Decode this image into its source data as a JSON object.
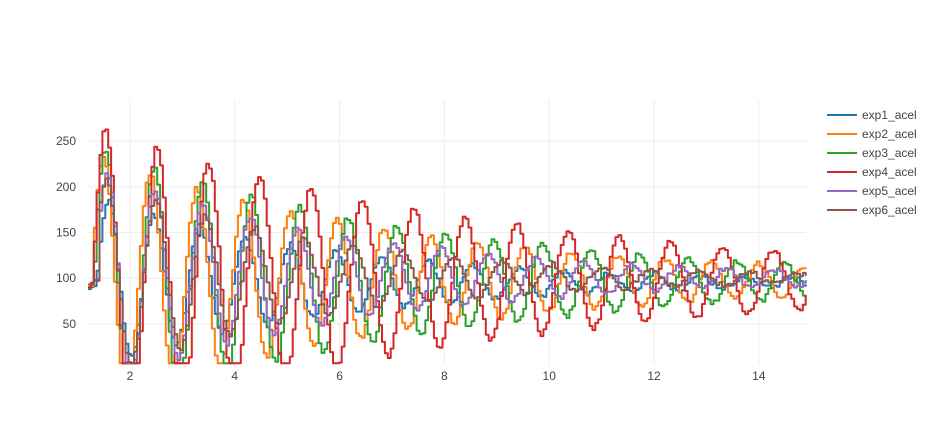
{
  "chart_data": {
    "type": "line",
    "title": "",
    "xlabel": "",
    "ylabel": "",
    "xlim": [
      1.2,
      14.9
    ],
    "ylim": [
      5,
      295
    ],
    "x_ticks": [
      2,
      4,
      6,
      8,
      10,
      12,
      14
    ],
    "y_ticks": [
      50,
      100,
      150,
      200,
      250
    ],
    "grid": true,
    "legend_position": "top-right",
    "line_shape": "step",
    "series": [
      {
        "name": "exp1_acel",
        "color": "#1f77b4",
        "onset": 1.35,
        "freq": 1.15,
        "base": 95,
        "amp": 95,
        "decay": 0.22,
        "phase": 0.0
      },
      {
        "name": "exp2_acel",
        "color": "#ff7f0e",
        "onset": 1.3,
        "freq": 1.12,
        "base": 97,
        "amp": 140,
        "decay": 0.16,
        "phase": 0.35
      },
      {
        "name": "exp3_acel",
        "color": "#2ca02c",
        "onset": 1.3,
        "freq": 1.08,
        "base": 96,
        "amp": 150,
        "decay": 0.155,
        "phase": 0.1
      },
      {
        "name": "exp4_acel",
        "color": "#d62728",
        "onset": 1.3,
        "freq": 1.02,
        "base": 97,
        "amp": 170,
        "decay": 0.125,
        "phase": 0.2
      },
      {
        "name": "exp5_acel",
        "color": "#9467bd",
        "onset": 1.4,
        "freq": 1.1,
        "base": 100,
        "amp": 120,
        "decay": 0.2,
        "phase": 0.55
      },
      {
        "name": "exp6_acel",
        "color": "#8c564b",
        "onset": 1.4,
        "freq": 1.06,
        "base": 100,
        "amp": 110,
        "decay": 0.23,
        "phase": 0.7
      }
    ]
  }
}
